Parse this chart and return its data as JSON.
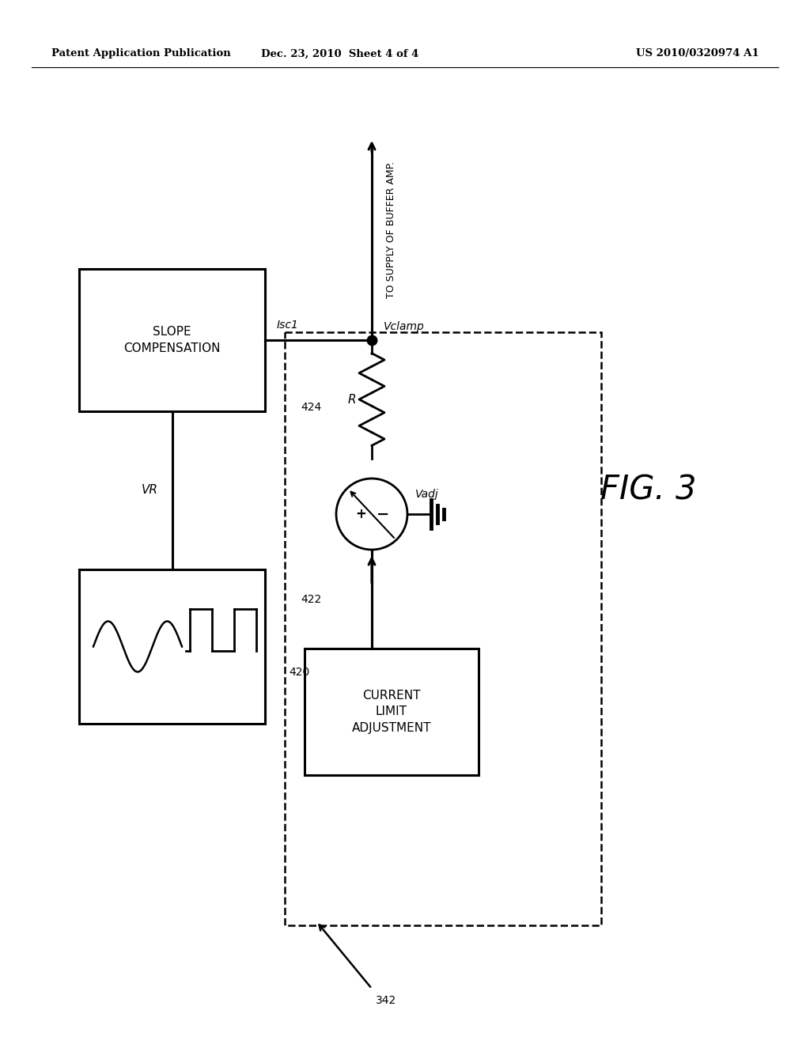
{
  "header_left": "Patent Application Publication",
  "header_center": "Dec. 23, 2010  Sheet 4 of 4",
  "header_right": "US 2010/0320974 A1",
  "bg_color": "#ffffff",
  "line_color": "#000000",
  "text_color": "#000000",
  "fig_label": "FIG. 3"
}
